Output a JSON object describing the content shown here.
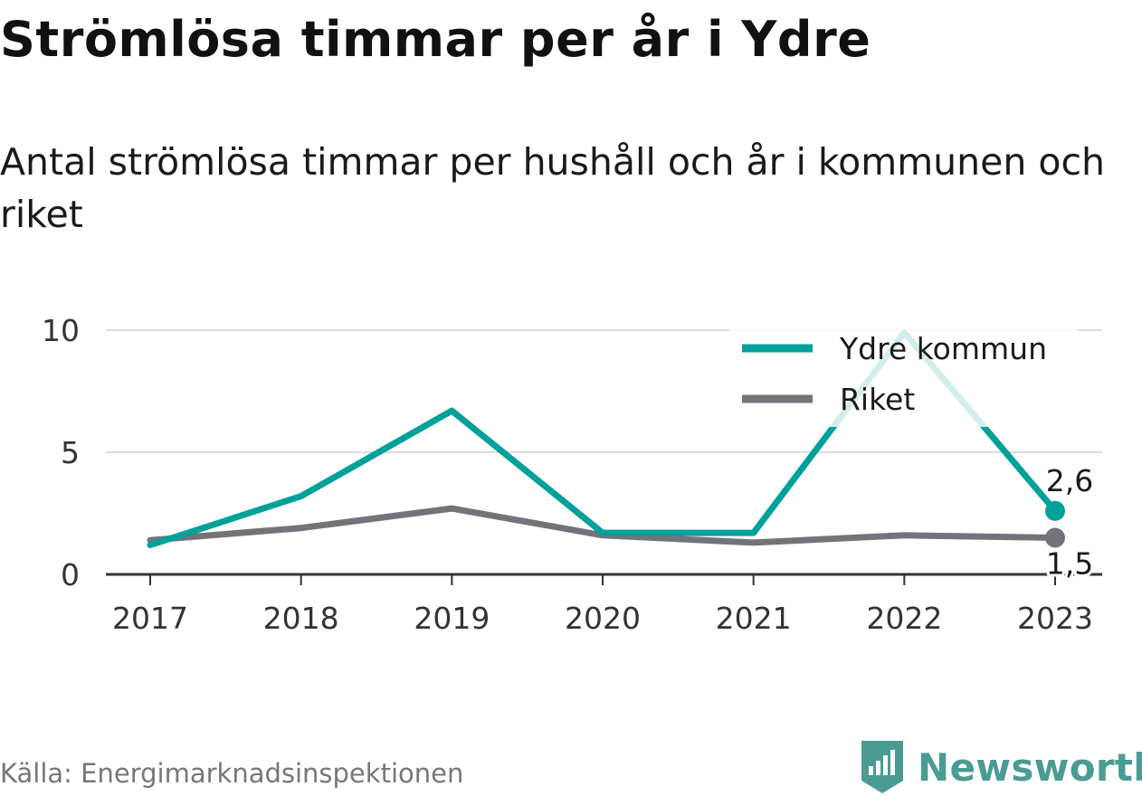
{
  "header": {
    "title": "Strömlösa timmar per år i Ydre",
    "subtitle": "Antal strömlösa timmar per hushåll och år i kommunen och riket"
  },
  "footer": {
    "source": "Källa: Energimarknadsinspektionen",
    "brand": "Newsworthy"
  },
  "chart_data": {
    "type": "line",
    "title": "Strömlösa timmar per år i Ydre",
    "subtitle": "Antal strömlösa timmar per hushåll och år i kommunen och riket",
    "x": [
      "2017",
      "2018",
      "2019",
      "2020",
      "2021",
      "2022",
      "2023"
    ],
    "y_ticks": [
      0,
      5,
      10
    ],
    "ylim": [
      0,
      10
    ],
    "grid": true,
    "legend_position": "top-right",
    "series": [
      {
        "name": "Ydre kommun",
        "color": "#00a19a",
        "values": [
          1.2,
          3.2,
          6.7,
          1.7,
          1.7,
          9.9,
          2.6
        ],
        "end_label": "2,6"
      },
      {
        "name": "Riket",
        "color": "#74737a",
        "values": [
          1.4,
          1.9,
          2.7,
          1.6,
          1.3,
          1.6,
          1.5
        ],
        "end_label": "1,5"
      }
    ]
  }
}
